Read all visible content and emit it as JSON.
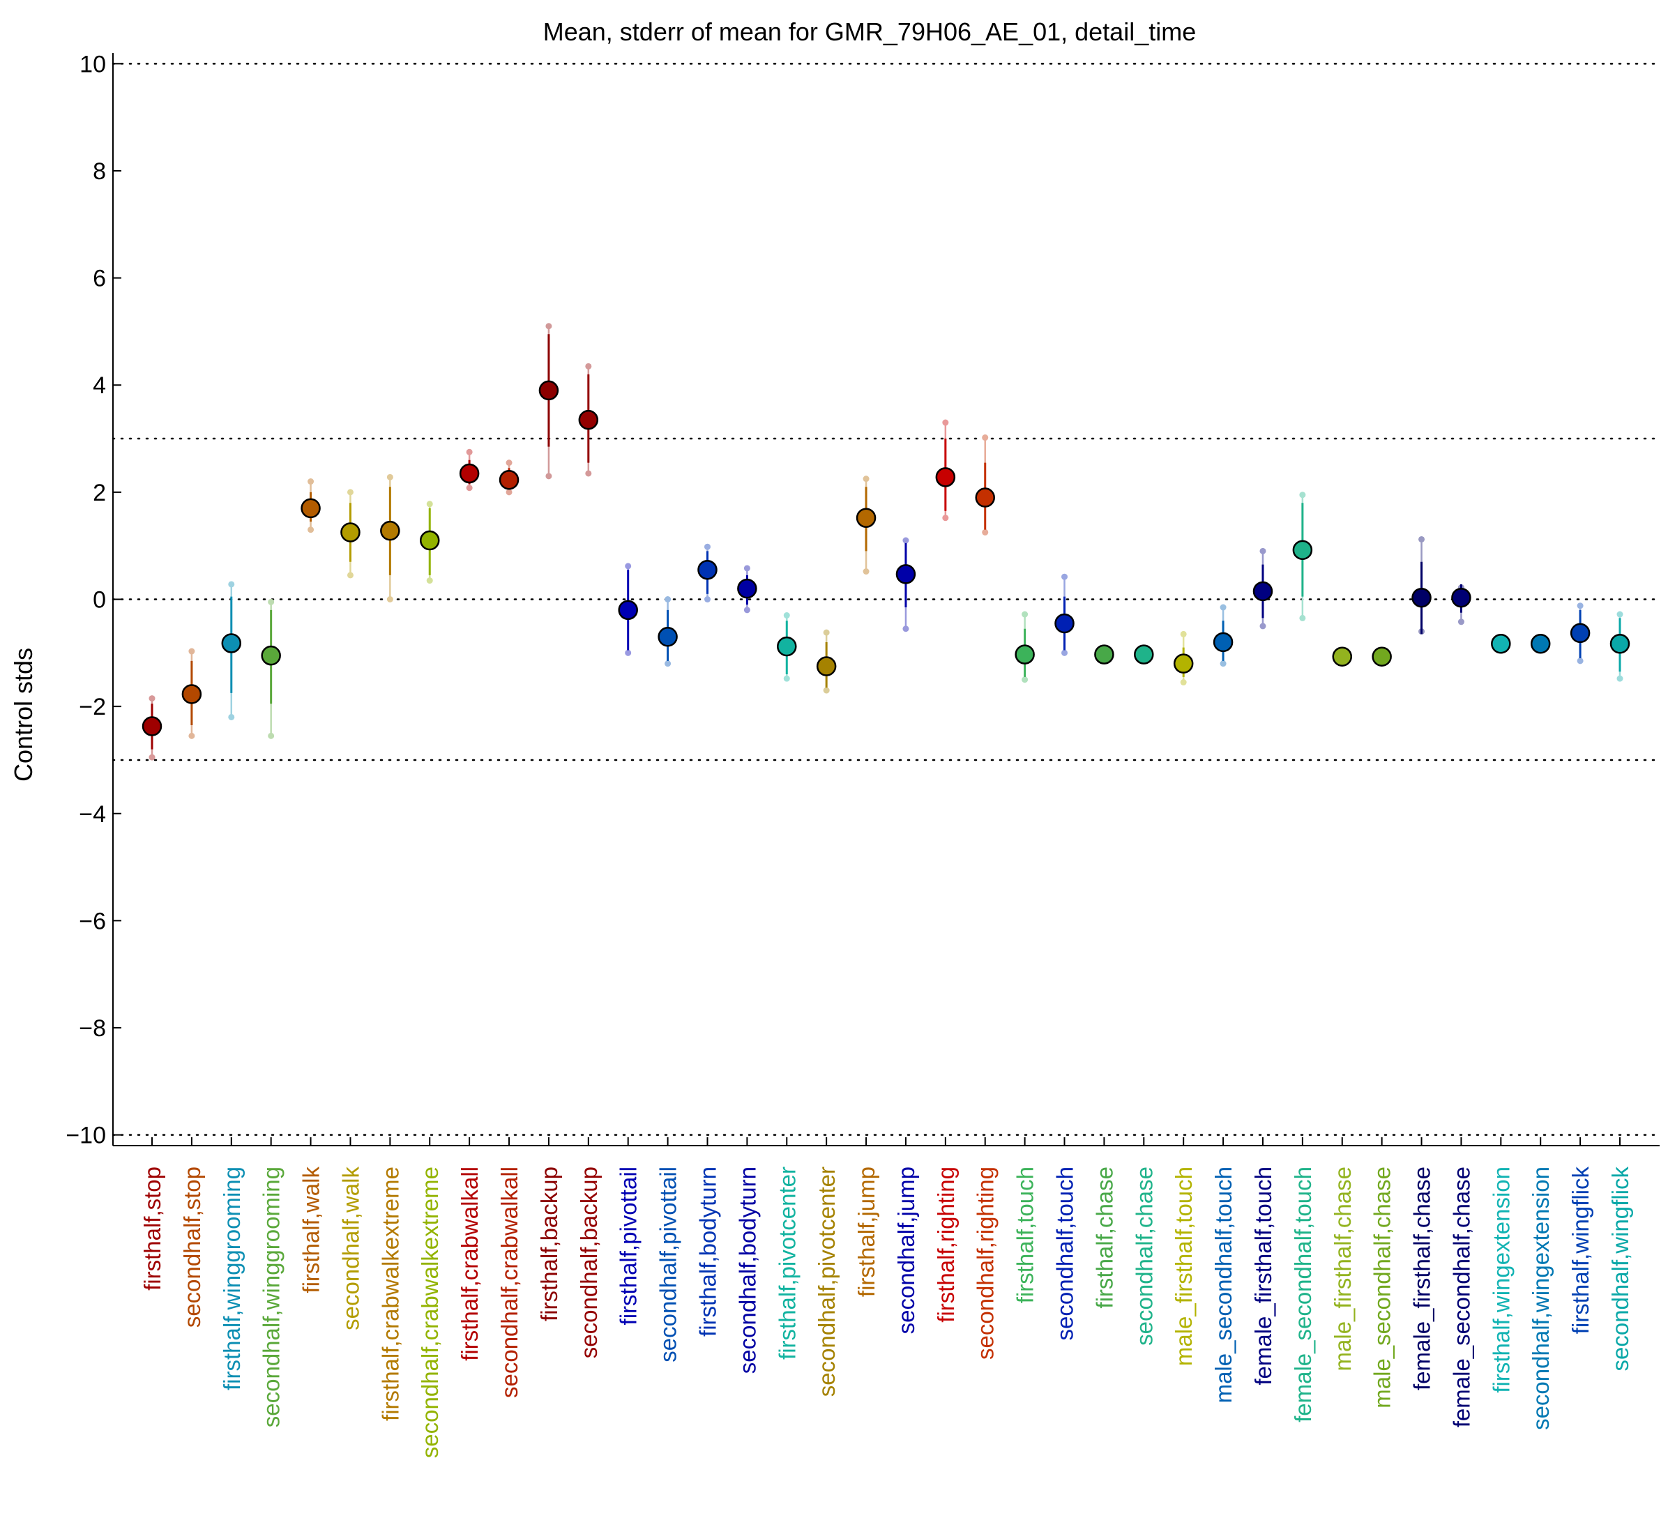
{
  "chart_data": {
    "type": "scatter",
    "title": "Mean, stderr of mean for GMR_79H06_AE_01, detail_time",
    "xlabel": "",
    "ylabel": "Control stds",
    "ylim": [
      -10.2,
      10.2
    ],
    "yticks": [
      10,
      8,
      6,
      4,
      2,
      0,
      -2,
      -4,
      -6,
      -8,
      -10
    ],
    "ytick_labels": [
      "10",
      "8",
      "6",
      "4",
      "2",
      "0",
      "−2",
      "−4",
      "−6",
      "−8",
      "−10"
    ],
    "reference_lines": [
      10,
      3,
      0,
      -3,
      -10
    ],
    "grid": false,
    "legend": "none",
    "points": [
      {
        "label": "firsthalf,stop",
        "mean": -2.37,
        "err_low": -2.8,
        "err_high": -1.95,
        "ext_low": -2.95,
        "ext_high": -1.85,
        "color": "#9e0000"
      },
      {
        "label": "secondhalf,stop",
        "mean": -1.77,
        "err_low": -2.35,
        "err_high": -1.15,
        "ext_low": -2.55,
        "ext_high": -0.97,
        "color": "#b34800"
      },
      {
        "label": "firsthalf,winggrooming",
        "mean": -0.82,
        "err_low": -1.75,
        "err_high": 0.05,
        "ext_low": -2.2,
        "ext_high": 0.28,
        "color": "#0d8fb3"
      },
      {
        "label": "secondhalf,winggrooming",
        "mean": -1.05,
        "err_low": -1.95,
        "err_high": -0.2,
        "ext_low": -2.55,
        "ext_high": -0.05,
        "color": "#5aa83a"
      },
      {
        "label": "firsthalf,walk",
        "mean": 1.7,
        "err_low": 1.45,
        "err_high": 2.0,
        "ext_low": 1.3,
        "ext_high": 2.2,
        "color": "#b35c00"
      },
      {
        "label": "secondhalf,walk",
        "mean": 1.25,
        "err_low": 0.7,
        "err_high": 1.8,
        "ext_low": 0.45,
        "ext_high": 2.0,
        "color": "#b39c00"
      },
      {
        "label": "firsthalf,crabwalkextreme",
        "mean": 1.28,
        "err_low": 0.45,
        "err_high": 2.1,
        "ext_low": 0.0,
        "ext_high": 2.28,
        "color": "#b37a00"
      },
      {
        "label": "secondhalf,crabwalkextreme",
        "mean": 1.1,
        "err_low": 0.45,
        "err_high": 1.7,
        "ext_low": 0.35,
        "ext_high": 1.78,
        "color": "#93b300"
      },
      {
        "label": "firsthalf,crabwalkall",
        "mean": 2.35,
        "err_low": 2.15,
        "err_high": 2.6,
        "ext_low": 2.08,
        "ext_high": 2.75,
        "color": "#b30000"
      },
      {
        "label": "secondhalf,crabwalkall",
        "mean": 2.23,
        "err_low": 2.05,
        "err_high": 2.45,
        "ext_low": 2.0,
        "ext_high": 2.55,
        "color": "#b32000"
      },
      {
        "label": "firsthalf,backup",
        "mean": 3.9,
        "err_low": 2.85,
        "err_high": 4.95,
        "ext_low": 2.3,
        "ext_high": 5.1,
        "color": "#8c0000"
      },
      {
        "label": "secondhalf,backup",
        "mean": 3.35,
        "err_low": 2.55,
        "err_high": 4.2,
        "ext_low": 2.35,
        "ext_high": 4.35,
        "color": "#940000"
      },
      {
        "label": "firsthalf,pivottail",
        "mean": -0.2,
        "err_low": -0.95,
        "err_high": 0.55,
        "ext_low": -1.0,
        "ext_high": 0.62,
        "color": "#0000b3"
      },
      {
        "label": "secondhalf,pivottail",
        "mean": -0.7,
        "err_low": -1.15,
        "err_high": -0.2,
        "ext_low": -1.2,
        "ext_high": 0.0,
        "color": "#0050b3"
      },
      {
        "label": "firsthalf,bodyturn",
        "mean": 0.55,
        "err_low": 0.1,
        "err_high": 0.9,
        "ext_low": 0.0,
        "ext_high": 0.98,
        "color": "#0033b3"
      },
      {
        "label": "secondhalf,bodyturn",
        "mean": 0.2,
        "err_low": -0.1,
        "err_high": 0.45,
        "ext_low": -0.2,
        "ext_high": 0.58,
        "color": "#0000a3"
      },
      {
        "label": "firsthalf,pivotcenter",
        "mean": -0.88,
        "err_low": -1.4,
        "err_high": -0.4,
        "ext_low": -1.48,
        "ext_high": -0.3,
        "color": "#12b3a0"
      },
      {
        "label": "secondhalf,pivotcenter",
        "mean": -1.25,
        "err_low": -1.65,
        "err_high": -0.8,
        "ext_low": -1.7,
        "ext_high": -0.62,
        "color": "#a58200"
      },
      {
        "label": "firsthalf,jump",
        "mean": 1.52,
        "err_low": 0.9,
        "err_high": 2.1,
        "ext_low": 0.52,
        "ext_high": 2.25,
        "color": "#b36800"
      },
      {
        "label": "secondhalf,jump",
        "mean": 0.47,
        "err_low": -0.15,
        "err_high": 1.05,
        "ext_low": -0.55,
        "ext_high": 1.1,
        "color": "#0000a8"
      },
      {
        "label": "firsthalf,righting",
        "mean": 2.28,
        "err_low": 1.65,
        "err_high": 3.0,
        "ext_low": 1.52,
        "ext_high": 3.3,
        "color": "#c70000"
      },
      {
        "label": "secondhalf,righting",
        "mean": 1.9,
        "err_low": 1.3,
        "err_high": 2.55,
        "ext_low": 1.25,
        "ext_high": 3.02,
        "color": "#c43000"
      },
      {
        "label": "firsthalf,touch",
        "mean": -1.03,
        "err_low": -1.45,
        "err_high": -0.55,
        "ext_low": -1.5,
        "ext_high": -0.28,
        "color": "#3cb35a"
      },
      {
        "label": "secondhalf,touch",
        "mean": -0.45,
        "err_low": -0.95,
        "err_high": 0.05,
        "ext_low": -1.0,
        "ext_high": 0.42,
        "color": "#0020b3"
      },
      {
        "label": "firsthalf,chase",
        "mean": -1.03,
        "err_low": -1.03,
        "err_high": -1.03,
        "ext_low": -1.03,
        "ext_high": -1.03,
        "color": "#48a848"
      },
      {
        "label": "secondhalf,chase",
        "mean": -1.03,
        "err_low": -1.03,
        "err_high": -1.03,
        "ext_low": -1.03,
        "ext_high": -1.03,
        "color": "#1fb38a"
      },
      {
        "label": "male_firsthalf,touch",
        "mean": -1.2,
        "err_low": -1.45,
        "err_high": -0.9,
        "ext_low": -1.55,
        "ext_high": -0.65,
        "color": "#b3b300"
      },
      {
        "label": "male_secondhalf,touch",
        "mean": -0.8,
        "err_low": -1.15,
        "err_high": -0.4,
        "ext_low": -1.2,
        "ext_high": -0.15,
        "color": "#0060b3"
      },
      {
        "label": "female_firsthalf,touch",
        "mean": 0.15,
        "err_low": -0.35,
        "err_high": 0.65,
        "ext_low": -0.5,
        "ext_high": 0.9,
        "color": "#000080"
      },
      {
        "label": "female_secondhalf,touch",
        "mean": 0.92,
        "err_low": 0.05,
        "err_high": 1.8,
        "ext_low": -0.35,
        "ext_high": 1.95,
        "color": "#1fb38a"
      },
      {
        "label": "male_firsthalf,chase",
        "mean": -1.07,
        "err_low": -1.07,
        "err_high": -1.07,
        "ext_low": -1.07,
        "ext_high": -1.07,
        "color": "#93b31f"
      },
      {
        "label": "male_secondhalf,chase",
        "mean": -1.07,
        "err_low": -1.07,
        "err_high": -1.07,
        "ext_low": -1.07,
        "ext_high": -1.07,
        "color": "#72a81f"
      },
      {
        "label": "female_firsthalf,chase",
        "mean": 0.03,
        "err_low": -0.65,
        "err_high": 0.7,
        "ext_low": -0.6,
        "ext_high": 1.12,
        "color": "#000066"
      },
      {
        "label": "female_secondhalf,chase",
        "mean": 0.03,
        "err_low": -0.25,
        "err_high": 0.28,
        "ext_low": -0.42,
        "ext_high": 0.22,
        "color": "#000073"
      },
      {
        "label": "firsthalf,wingextension",
        "mean": -0.83,
        "err_low": -0.83,
        "err_high": -0.83,
        "ext_low": -0.83,
        "ext_high": -0.83,
        "color": "#12b3b3"
      },
      {
        "label": "secondhalf,wingextension",
        "mean": -0.83,
        "err_low": -0.83,
        "err_high": -0.83,
        "ext_low": -0.83,
        "ext_high": -0.83,
        "color": "#0078b3"
      },
      {
        "label": "firsthalf,wingflick",
        "mean": -0.63,
        "err_low": -1.1,
        "err_high": -0.2,
        "ext_low": -1.15,
        "ext_high": -0.12,
        "color": "#0040b3"
      },
      {
        "label": "secondhalf,wingflick",
        "mean": -0.83,
        "err_low": -1.35,
        "err_high": -0.35,
        "ext_low": -1.48,
        "ext_high": -0.28,
        "color": "#0aa8a8"
      }
    ]
  }
}
